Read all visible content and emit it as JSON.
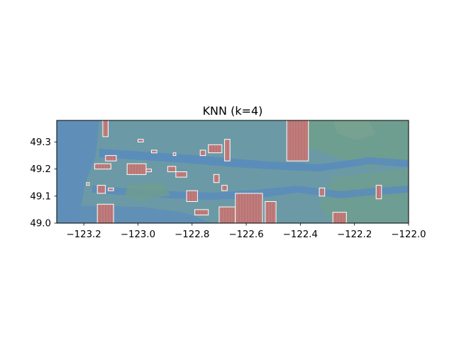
{
  "chart_data": {
    "type": "heatmap",
    "title": "KNN (k=4)",
    "xlabel": "",
    "ylabel": "",
    "xlim": [
      -123.3,
      -122.0
    ],
    "ylim": [
      49.0,
      49.38
    ],
    "x_ticks": [
      -123.2,
      -123.0,
      -122.8,
      -122.6,
      -122.4,
      -122.2,
      -122.0
    ],
    "x_tick_labels": [
      "−123.2",
      "−123.0",
      "−122.8",
      "−122.6",
      "−122.4",
      "−122.2",
      "−122.0"
    ],
    "y_ticks": [
      49.0,
      49.1,
      49.2,
      49.3
    ],
    "y_tick_labels": [
      "49.0",
      "49.1",
      "49.2",
      "49.3"
    ],
    "grid": false,
    "background": "basemap",
    "colors": {
      "basemap_water": "#5f8fb8",
      "basemap_land": "#6b9aa6",
      "basemap_green": "#6f9e8e",
      "prediction_positive": "#c97a77",
      "prediction_edge": "#ffffff"
    },
    "regions": [
      {
        "lon": [
          -123.13,
          -123.11
        ],
        "lat": [
          49.32,
          49.38
        ]
      },
      {
        "lon": [
          -123.15,
          -123.09
        ],
        "lat": [
          49.0,
          49.07
        ]
      },
      {
        "lon": [
          -123.12,
          -123.08
        ],
        "lat": [
          49.23,
          49.25
        ]
      },
      {
        "lon": [
          -123.16,
          -123.1
        ],
        "lat": [
          49.2,
          49.22
        ]
      },
      {
        "lon": [
          -123.15,
          -123.12
        ],
        "lat": [
          49.11,
          49.14
        ]
      },
      {
        "lon": [
          -123.11,
          -123.09
        ],
        "lat": [
          49.12,
          49.13
        ]
      },
      {
        "lon": [
          -123.04,
          -122.97
        ],
        "lat": [
          49.18,
          49.22
        ]
      },
      {
        "lon": [
          -123.0,
          -122.98
        ],
        "lat": [
          49.3,
          49.31
        ]
      },
      {
        "lon": [
          -122.95,
          -122.93
        ],
        "lat": [
          49.26,
          49.27
        ]
      },
      {
        "lon": [
          -122.87,
          -122.86
        ],
        "lat": [
          49.25,
          49.26
        ]
      },
      {
        "lon": [
          -122.89,
          -122.86
        ],
        "lat": [
          49.19,
          49.21
        ]
      },
      {
        "lon": [
          -122.86,
          -122.82
        ],
        "lat": [
          49.17,
          49.19
        ]
      },
      {
        "lon": [
          -122.82,
          -122.78
        ],
        "lat": [
          49.08,
          49.12
        ]
      },
      {
        "lon": [
          -122.77,
          -122.75
        ],
        "lat": [
          49.25,
          49.27
        ]
      },
      {
        "lon": [
          -122.74,
          -122.69
        ],
        "lat": [
          49.26,
          49.29
        ]
      },
      {
        "lon": [
          -122.68,
          -122.66
        ],
        "lat": [
          49.23,
          49.31
        ]
      },
      {
        "lon": [
          -122.72,
          -122.7
        ],
        "lat": [
          49.15,
          49.18
        ]
      },
      {
        "lon": [
          -122.69,
          -122.67
        ],
        "lat": [
          49.12,
          49.14
        ]
      },
      {
        "lon": [
          -122.7,
          -122.64
        ],
        "lat": [
          49.0,
          49.06
        ]
      },
      {
        "lon": [
          -122.64,
          -122.54
        ],
        "lat": [
          49.0,
          49.11
        ]
      },
      {
        "lon": [
          -122.53,
          -122.49
        ],
        "lat": [
          49.0,
          49.08
        ]
      },
      {
        "lon": [
          -122.79,
          -122.74
        ],
        "lat": [
          49.03,
          49.05
        ]
      },
      {
        "lon": [
          -122.45,
          -122.37
        ],
        "lat": [
          49.23,
          49.38
        ]
      },
      {
        "lon": [
          -122.33,
          -122.31
        ],
        "lat": [
          49.1,
          49.13
        ]
      },
      {
        "lon": [
          -122.28,
          -122.23
        ],
        "lat": [
          49.0,
          49.04
        ]
      },
      {
        "lon": [
          -122.12,
          -122.1
        ],
        "lat": [
          49.09,
          49.14
        ]
      },
      {
        "lon": [
          -123.19,
          -123.18
        ],
        "lat": [
          49.14,
          49.15
        ]
      },
      {
        "lon": [
          -122.97,
          -122.95
        ],
        "lat": [
          49.19,
          49.2
        ]
      }
    ]
  }
}
